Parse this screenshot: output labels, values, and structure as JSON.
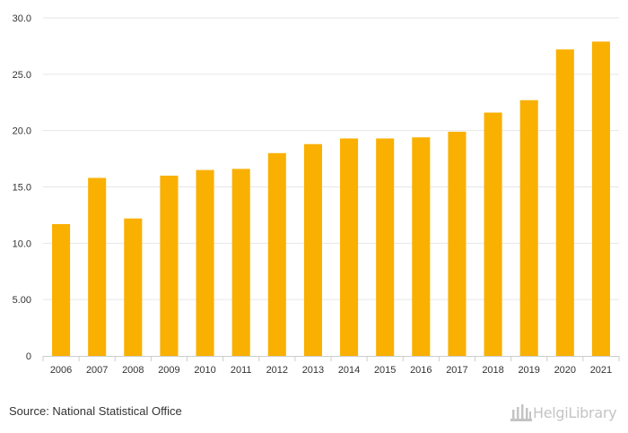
{
  "chart_data": {
    "type": "bar",
    "categories": [
      "2006",
      "2007",
      "2008",
      "2009",
      "2010",
      "2011",
      "2012",
      "2013",
      "2014",
      "2015",
      "2016",
      "2017",
      "2018",
      "2019",
      "2020",
      "2021"
    ],
    "values": [
      11.7,
      15.8,
      12.2,
      16.0,
      16.5,
      16.6,
      18.0,
      18.8,
      19.3,
      19.3,
      19.4,
      19.9,
      21.6,
      22.7,
      27.2,
      27.9
    ],
    "ylim": [
      0,
      30
    ],
    "yticks": [
      0,
      5,
      10,
      15,
      20,
      25,
      30
    ],
    "ytick_labels": [
      "0",
      "5.00",
      "10.0",
      "15.0",
      "20.0",
      "25.0",
      "30.0"
    ],
    "bar_color": "#f9b000",
    "grid": true,
    "legend": "none"
  },
  "footer": {
    "source": "Source: National Statistical Office",
    "brand": "HelgiLibrary"
  },
  "icons": {
    "brand_icon": "library-building-icon"
  },
  "colors": {
    "grid": "#e6e6e6",
    "axis_text": "#333333",
    "brand": "#c4c4c4"
  }
}
